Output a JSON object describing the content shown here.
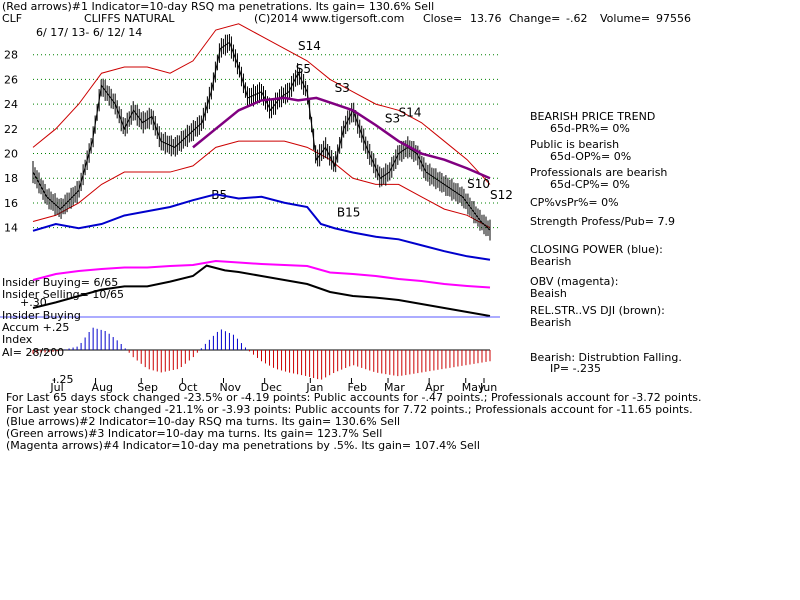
{
  "header": {
    "line1": "(Red arrows)#1 Indicator=10-day RSQ ma penetrations. Its gain= 130.6% Sell",
    "symbol": "CLF",
    "company": "CLIFFS NATURAL",
    "copyright": "(C)2014 www.tigersoft.com",
    "close_label": "Close=",
    "close_value": "13.76",
    "change_label": "Change=",
    "change_value": "-.62",
    "volume_label": "Volume=",
    "volume_value": "97556",
    "date_range": "6/ 17/ 13- 6/ 12/ 14"
  },
  "right_panel": {
    "trend_title": "BEARISH PRICE TREND",
    "pr_line": "65d-PR%= 0%",
    "public_title": "Public is bearish",
    "op_line": "65d-OP%= 0%",
    "prof_title": "Professionals are bearish",
    "cp_line": "65d-CP%= 0%",
    "cpvspr": "CP%vsPr%= 0%",
    "strength": "Strength Profess/Pub= 7.9",
    "closing_power_title": "CLOSING POWER (blue):",
    "closing_power_value": "Bearish",
    "obv_title": "OBV (magenta):",
    "obv_value": "Beaish",
    "relstr_title": "REL.STR..VS DJI (brown):",
    "relstr_value": "Bearish",
    "dist_title": "Bearish: Distrubtion Falling.",
    "ip_line": "IP= -.235"
  },
  "left_labels": {
    "insider_buying_count": "Insider Buying= 6/65",
    "insider_selling_count": "Insider Selling= 10/65",
    "ratio": "+.30",
    "insider_buying": "Insider Buying",
    "accum_line": "Accum  +.25",
    "index_line": "Index",
    "ai_line": "AI= 28/200",
    "neg_line": "-.25"
  },
  "footer": {
    "line1": "For Last 65 days stock changed -23.5% or -4.19 points:  Public accounts for -.47 points.;  Professionals account for -3.72 points.",
    "line2": "For Last year stock changed -21.1% or -3.93 points:  Public accounts for  7.72 points.;  Professionals account for -11.65 points.",
    "line3": "(Blue arrows)#2 Indicator=10-day RSQ ma turns. Its gain= 130.6% Sell",
    "line4": "(Green arrows)#3 Indicator=10-day ma turns. Its gain= 123.7% Sell",
    "line5": "(Magenta arrows)#4 Indicator=10-day ma penetrations by .5%. Its gain= 107.4% Sell"
  },
  "colors": {
    "price": "#000000",
    "band": "#cc0000",
    "ma": "#800080",
    "grid": "#008000",
    "closing_power": "#0000cc",
    "obv": "#ff00ff",
    "relstr": "#000000",
    "accum_pos": "#0000cc",
    "accum_neg": "#cc0000",
    "sell_arrow": "#ff0000",
    "buy_arrow": "#ff0000",
    "blue_arrow": "#0000ff",
    "hline": "#5a5aff"
  },
  "chart_data": {
    "type": "line",
    "title": "CLIFFS NATURAL",
    "ylim": [
      13,
      30
    ],
    "yticks": [
      14,
      16,
      18,
      20,
      22,
      24,
      26,
      28
    ],
    "months": [
      "Jul",
      "Aug",
      "Sep",
      "Oct",
      "Nov",
      "Dec",
      "Jan",
      "Feb",
      "Mar",
      "Apr",
      "May",
      "Jun"
    ],
    "month_positions": [
      0.06,
      0.15,
      0.25,
      0.34,
      0.43,
      0.52,
      0.62,
      0.71,
      0.79,
      0.88,
      0.96,
      1.0
    ],
    "series": [
      {
        "name": "price",
        "t": [
          0.0,
          0.03,
          0.06,
          0.1,
          0.13,
          0.15,
          0.18,
          0.2,
          0.22,
          0.24,
          0.26,
          0.28,
          0.31,
          0.34,
          0.37,
          0.39,
          0.41,
          0.43,
          0.45,
          0.47,
          0.5,
          0.52,
          0.54,
          0.56,
          0.58,
          0.6,
          0.62,
          0.64,
          0.66,
          0.68,
          0.7,
          0.73,
          0.76,
          0.78,
          0.8,
          0.82,
          0.84,
          0.86,
          0.88,
          0.9,
          0.92,
          0.94,
          0.96,
          0.98,
          1.0
        ],
        "values": [
          18.5,
          16.5,
          15.5,
          17,
          21,
          25.5,
          24,
          22,
          23.5,
          22.5,
          23,
          21,
          20.5,
          21.5,
          22.5,
          25,
          28.5,
          29,
          27,
          24.5,
          25,
          23.5,
          24.5,
          25,
          26.5,
          25,
          19.5,
          20.5,
          19,
          22,
          23.5,
          20.5,
          18,
          18.5,
          20,
          20.5,
          20,
          18.5,
          18,
          17.5,
          17,
          16.5,
          15.5,
          14.5,
          13.8
        ]
      },
      {
        "name": "upper_band",
        "t": [
          0.0,
          0.05,
          0.1,
          0.15,
          0.2,
          0.25,
          0.3,
          0.35,
          0.4,
          0.45,
          0.5,
          0.55,
          0.6,
          0.65,
          0.7,
          0.75,
          0.8,
          0.85,
          0.9,
          0.95,
          1.0
        ],
        "values": [
          20.5,
          22,
          24,
          26.5,
          27,
          27,
          26.5,
          27.5,
          30,
          30.5,
          29.5,
          28.5,
          27.5,
          26,
          25,
          24,
          23.5,
          22.5,
          21,
          19.5,
          17.5
        ]
      },
      {
        "name": "lower_band",
        "t": [
          0.0,
          0.05,
          0.1,
          0.15,
          0.2,
          0.25,
          0.3,
          0.35,
          0.4,
          0.45,
          0.5,
          0.55,
          0.6,
          0.65,
          0.7,
          0.75,
          0.8,
          0.85,
          0.9,
          0.95,
          1.0
        ],
        "values": [
          14.5,
          15,
          16,
          17.5,
          18.5,
          18.5,
          18.5,
          19,
          20.5,
          21,
          21,
          21,
          20.5,
          19.5,
          18,
          17.5,
          17.5,
          16.5,
          15.5,
          15,
          14
        ]
      },
      {
        "name": "moving_average",
        "t": [
          0.35,
          0.4,
          0.45,
          0.5,
          0.55,
          0.58,
          0.62,
          0.66,
          0.7,
          0.75,
          0.8,
          0.85,
          0.9,
          0.95,
          1.0
        ],
        "values": [
          20.5,
          22,
          23.5,
          24.3,
          24.5,
          24.3,
          24.5,
          24,
          23.5,
          22.3,
          21,
          20,
          19.5,
          18.8,
          18
        ]
      }
    ],
    "closing_power": [
      {
        "t": 0.0,
        "v": 0.52
      },
      {
        "t": 0.05,
        "v": 0.6
      },
      {
        "t": 0.1,
        "v": 0.55
      },
      {
        "t": 0.15,
        "v": 0.6
      },
      {
        "t": 0.2,
        "v": 0.7
      },
      {
        "t": 0.25,
        "v": 0.75
      },
      {
        "t": 0.3,
        "v": 0.8
      },
      {
        "t": 0.35,
        "v": 0.88
      },
      {
        "t": 0.4,
        "v": 0.95
      },
      {
        "t": 0.45,
        "v": 0.9
      },
      {
        "t": 0.5,
        "v": 0.92
      },
      {
        "t": 0.55,
        "v": 0.85
      },
      {
        "t": 0.6,
        "v": 0.8
      },
      {
        "t": 0.63,
        "v": 0.6
      },
      {
        "t": 0.66,
        "v": 0.55
      },
      {
        "t": 0.7,
        "v": 0.5
      },
      {
        "t": 0.75,
        "v": 0.45
      },
      {
        "t": 0.8,
        "v": 0.42
      },
      {
        "t": 0.85,
        "v": 0.35
      },
      {
        "t": 0.9,
        "v": 0.28
      },
      {
        "t": 0.95,
        "v": 0.22
      },
      {
        "t": 1.0,
        "v": 0.18
      }
    ],
    "obv": [
      {
        "t": 0.0,
        "v": 0.3
      },
      {
        "t": 0.05,
        "v": 0.42
      },
      {
        "t": 0.1,
        "v": 0.48
      },
      {
        "t": 0.15,
        "v": 0.52
      },
      {
        "t": 0.2,
        "v": 0.55
      },
      {
        "t": 0.25,
        "v": 0.55
      },
      {
        "t": 0.3,
        "v": 0.58
      },
      {
        "t": 0.35,
        "v": 0.6
      },
      {
        "t": 0.4,
        "v": 0.68
      },
      {
        "t": 0.45,
        "v": 0.65
      },
      {
        "t": 0.5,
        "v": 0.62
      },
      {
        "t": 0.55,
        "v": 0.6
      },
      {
        "t": 0.6,
        "v": 0.58
      },
      {
        "t": 0.65,
        "v": 0.45
      },
      {
        "t": 0.7,
        "v": 0.42
      },
      {
        "t": 0.75,
        "v": 0.38
      },
      {
        "t": 0.8,
        "v": 0.32
      },
      {
        "t": 0.85,
        "v": 0.28
      },
      {
        "t": 0.9,
        "v": 0.22
      },
      {
        "t": 0.95,
        "v": 0.18
      },
      {
        "t": 1.0,
        "v": 0.15
      }
    ],
    "relstr": [
      {
        "t": 0.0,
        "v": 0.15
      },
      {
        "t": 0.05,
        "v": 0.22
      },
      {
        "t": 0.1,
        "v": 0.3
      },
      {
        "t": 0.15,
        "v": 0.38
      },
      {
        "t": 0.2,
        "v": 0.42
      },
      {
        "t": 0.25,
        "v": 0.42
      },
      {
        "t": 0.3,
        "v": 0.48
      },
      {
        "t": 0.35,
        "v": 0.55
      },
      {
        "t": 0.38,
        "v": 0.68
      },
      {
        "t": 0.42,
        "v": 0.62
      },
      {
        "t": 0.45,
        "v": 0.6
      },
      {
        "t": 0.5,
        "v": 0.55
      },
      {
        "t": 0.55,
        "v": 0.5
      },
      {
        "t": 0.6,
        "v": 0.45
      },
      {
        "t": 0.65,
        "v": 0.35
      },
      {
        "t": 0.7,
        "v": 0.3
      },
      {
        "t": 0.75,
        "v": 0.28
      },
      {
        "t": 0.8,
        "v": 0.25
      },
      {
        "t": 0.85,
        "v": 0.2
      },
      {
        "t": 0.9,
        "v": 0.15
      },
      {
        "t": 0.95,
        "v": 0.1
      },
      {
        "t": 1.0,
        "v": 0.05
      }
    ],
    "accumulation": [
      {
        "t": 0.0,
        "v": -0.05
      },
      {
        "t": 0.05,
        "v": -0.02
      },
      {
        "t": 0.1,
        "v": 0.05
      },
      {
        "t": 0.13,
        "v": 0.3
      },
      {
        "t": 0.16,
        "v": 0.25
      },
      {
        "t": 0.19,
        "v": 0.1
      },
      {
        "t": 0.22,
        "v": -0.1
      },
      {
        "t": 0.25,
        "v": -0.25
      },
      {
        "t": 0.28,
        "v": -0.3
      },
      {
        "t": 0.32,
        "v": -0.25
      },
      {
        "t": 0.35,
        "v": -0.1
      },
      {
        "t": 0.38,
        "v": 0.1
      },
      {
        "t": 0.41,
        "v": 0.28
      },
      {
        "t": 0.44,
        "v": 0.2
      },
      {
        "t": 0.47,
        "v": 0.0
      },
      {
        "t": 0.5,
        "v": -0.15
      },
      {
        "t": 0.53,
        "v": -0.25
      },
      {
        "t": 0.56,
        "v": -0.3
      },
      {
        "t": 0.6,
        "v": -0.35
      },
      {
        "t": 0.63,
        "v": -0.4
      },
      {
        "t": 0.66,
        "v": -0.3
      },
      {
        "t": 0.7,
        "v": -0.2
      },
      {
        "t": 0.75,
        "v": -0.3
      },
      {
        "t": 0.8,
        "v": -0.35
      },
      {
        "t": 0.85,
        "v": -0.3
      },
      {
        "t": 0.9,
        "v": -0.25
      },
      {
        "t": 0.95,
        "v": -0.2
      },
      {
        "t": 1.0,
        "v": -0.15
      }
    ],
    "signals": [
      {
        "label": "S14",
        "t": 0.58,
        "price": 28.4
      },
      {
        "label": "S5",
        "t": 0.575,
        "price": 26.5
      },
      {
        "label": "S3",
        "t": 0.66,
        "price": 25.0
      },
      {
        "label": "S3",
        "t": 0.77,
        "price": 22.5
      },
      {
        "label": "S14",
        "t": 0.8,
        "price": 23.0
      },
      {
        "label": "S10",
        "t": 0.95,
        "price": 17.2
      },
      {
        "label": "S12",
        "t": 1.0,
        "price": 16.3
      },
      {
        "label": "B5",
        "t": 0.39,
        "price": 16.3
      },
      {
        "label": "B15",
        "t": 0.665,
        "price": 14.9
      }
    ]
  }
}
